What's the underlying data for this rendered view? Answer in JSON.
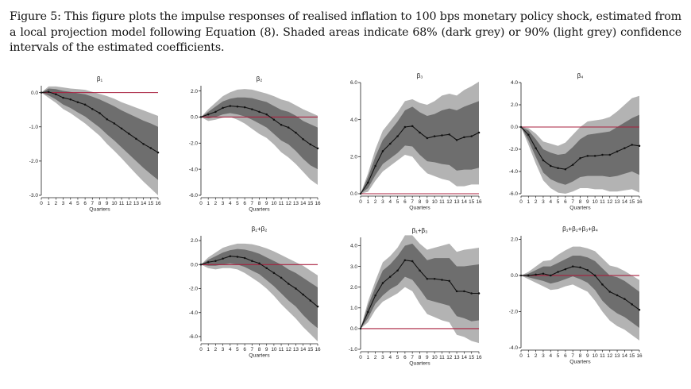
{
  "figure": {
    "caption": "Figure 5: This figure plots the impulse responses of realised inflation to 100 bps monetary policy shock, estimated from a local projection model following Equation (8). Shaded areas indicate 68% (dark grey) or 90% (light grey) confidence intervals of the estimated coefficients."
  },
  "colors": {
    "band90": "#b3b3b3",
    "band68": "#6e6e6e",
    "line": "#111111",
    "zero_line": "#a8203f"
  },
  "chart_data": [
    {
      "type": "line",
      "title": "β₁",
      "xlabel": "Quarters",
      "ylabel": "",
      "x": [
        0,
        1,
        2,
        3,
        4,
        5,
        6,
        7,
        8,
        9,
        10,
        11,
        12,
        13,
        14,
        15,
        16
      ],
      "ylim": [
        -3.0,
        0.2
      ],
      "yticks": [
        0.0,
        -1.0,
        -2.0,
        -3.0
      ],
      "ytick_labels": [
        "0.0",
        "-1.0",
        "-2.0",
        "-3.0"
      ],
      "series": [
        {
          "name": "point estimate",
          "values": [
            0,
            0.02,
            -0.05,
            -0.15,
            -0.2,
            -0.28,
            -0.35,
            -0.48,
            -0.6,
            -0.78,
            -0.9,
            -1.05,
            -1.2,
            -1.35,
            -1.5,
            -1.62,
            -1.75
          ]
        },
        {
          "name": "68% lower",
          "values": [
            0,
            -0.08,
            -0.2,
            -0.35,
            -0.45,
            -0.58,
            -0.7,
            -0.86,
            -1.02,
            -1.22,
            -1.4,
            -1.6,
            -1.8,
            -2.0,
            -2.2,
            -2.38,
            -2.55
          ]
        },
        {
          "name": "68% upper",
          "values": [
            0,
            0.12,
            0.1,
            0.05,
            0.02,
            -0.02,
            -0.05,
            -0.12,
            -0.2,
            -0.3,
            -0.4,
            -0.52,
            -0.62,
            -0.72,
            -0.82,
            -0.9,
            -1.0
          ]
        },
        {
          "name": "90% lower",
          "values": [
            0,
            -0.15,
            -0.3,
            -0.48,
            -0.6,
            -0.75,
            -0.9,
            -1.08,
            -1.26,
            -1.5,
            -1.7,
            -1.92,
            -2.15,
            -2.38,
            -2.6,
            -2.8,
            -3.0
          ]
        },
        {
          "name": "90% upper",
          "values": [
            0,
            0.18,
            0.18,
            0.15,
            0.12,
            0.1,
            0.08,
            0.02,
            -0.04,
            -0.1,
            -0.18,
            -0.28,
            -0.36,
            -0.44,
            -0.52,
            -0.6,
            -0.68
          ]
        }
      ]
    },
    {
      "type": "line",
      "title": "β₂",
      "xlabel": "Quarters",
      "ylabel": "",
      "x": [
        0,
        1,
        2,
        3,
        4,
        5,
        6,
        7,
        8,
        9,
        10,
        11,
        12,
        13,
        14,
        15,
        16
      ],
      "ylim": [
        -6.0,
        2.4
      ],
      "yticks": [
        2.0,
        0.0,
        -2.0,
        -4.0,
        -6.0
      ],
      "ytick_labels": [
        "2.0",
        "0.0",
        "-2.0",
        "-4.0",
        "-6.0"
      ],
      "series": [
        {
          "name": "point estimate",
          "values": [
            0,
            0.2,
            0.4,
            0.7,
            0.85,
            0.8,
            0.75,
            0.6,
            0.4,
            0.2,
            -0.2,
            -0.6,
            -0.8,
            -1.2,
            -1.7,
            -2.1,
            -2.4
          ]
        },
        {
          "name": "68% lower",
          "values": [
            0,
            -0.1,
            0,
            0.2,
            0.3,
            0.2,
            0.05,
            -0.2,
            -0.5,
            -0.8,
            -1.3,
            -1.8,
            -2.1,
            -2.6,
            -3.2,
            -3.7,
            -4.0
          ]
        },
        {
          "name": "68% upper",
          "values": [
            0,
            0.4,
            0.8,
            1.2,
            1.4,
            1.5,
            1.5,
            1.45,
            1.3,
            1.15,
            0.85,
            0.55,
            0.4,
            0.1,
            -0.3,
            -0.55,
            -0.8
          ]
        },
        {
          "name": "90% lower",
          "values": [
            0,
            -0.3,
            -0.2,
            -0.05,
            0,
            -0.2,
            -0.5,
            -0.9,
            -1.3,
            -1.6,
            -2.1,
            -2.7,
            -3.1,
            -3.6,
            -4.2,
            -4.8,
            -5.2
          ]
        },
        {
          "name": "90% upper",
          "values": [
            0,
            0.6,
            1.1,
            1.6,
            1.9,
            2.1,
            2.15,
            2.1,
            1.95,
            1.8,
            1.6,
            1.35,
            1.2,
            0.9,
            0.6,
            0.35,
            0.1
          ]
        }
      ]
    },
    {
      "type": "line",
      "title": "β₃",
      "xlabel": "Quarters",
      "ylabel": "",
      "x": [
        0,
        1,
        2,
        3,
        4,
        5,
        6,
        7,
        8,
        9,
        10,
        11,
        12,
        13,
        14,
        15,
        16
      ],
      "ylim": [
        0.0,
        6.0
      ],
      "yticks": [
        6.0,
        4.0,
        2.0,
        0.0
      ],
      "ytick_labels": [
        "6.0",
        "4.0",
        "2.0",
        "0.0"
      ],
      "series": [
        {
          "name": "point estimate",
          "values": [
            0,
            0.6,
            1.5,
            2.3,
            2.7,
            3.1,
            3.6,
            3.65,
            3.3,
            3,
            3.1,
            3.15,
            3.2,
            2.9,
            3.05,
            3.1,
            3.3
          ]
        },
        {
          "name": "68% lower",
          "values": [
            0,
            0.3,
            1.0,
            1.6,
            1.9,
            2.2,
            2.6,
            2.55,
            2.1,
            1.75,
            1.7,
            1.6,
            1.55,
            1.25,
            1.3,
            1.3,
            1.4
          ]
        },
        {
          "name": "68% upper",
          "values": [
            0,
            0.9,
            2.0,
            2.9,
            3.4,
            3.9,
            4.5,
            4.7,
            4.4,
            4.2,
            4.3,
            4.5,
            4.6,
            4.5,
            4.7,
            4.85,
            5.0
          ]
        },
        {
          "name": "90% lower",
          "values": [
            0,
            0.1,
            0.7,
            1.2,
            1.5,
            1.8,
            2.1,
            2.0,
            1.5,
            1.1,
            0.95,
            0.8,
            0.7,
            0.4,
            0.4,
            0.5,
            0.5
          ]
        },
        {
          "name": "90% upper",
          "values": [
            0,
            1.1,
            2.4,
            3.4,
            3.9,
            4.4,
            5.0,
            5.1,
            4.9,
            4.8,
            5.0,
            5.3,
            5.4,
            5.3,
            5.6,
            5.8,
            6.05
          ]
        }
      ]
    },
    {
      "type": "line",
      "title": "β₄",
      "xlabel": "Quarters",
      "ylabel": "",
      "x": [
        0,
        1,
        2,
        3,
        4,
        5,
        6,
        7,
        8,
        9,
        10,
        11,
        12,
        13,
        14,
        15,
        16
      ],
      "ylim": [
        -6.0,
        4.0
      ],
      "yticks": [
        4.0,
        2.0,
        0.0,
        -2.0,
        -4.0,
        -6.0
      ],
      "ytick_labels": [
        "4.0",
        "2.0",
        "0.0",
        "-2.0",
        "-4.0",
        "-6.0"
      ],
      "series": [
        {
          "name": "point estimate",
          "values": [
            0,
            -0.7,
            -1.9,
            -3.0,
            -3.5,
            -3.7,
            -3.8,
            -3.4,
            -2.8,
            -2.6,
            -2.6,
            -2.5,
            -2.5,
            -2.2,
            -1.9,
            -1.6,
            -1.7
          ]
        },
        {
          "name": "68% lower",
          "values": [
            0,
            -1.2,
            -2.7,
            -4.1,
            -4.7,
            -5.0,
            -5.2,
            -4.9,
            -4.5,
            -4.4,
            -4.4,
            -4.4,
            -4.5,
            -4.4,
            -4.2,
            -4.0,
            -4.3
          ]
        },
        {
          "name": "68% upper",
          "values": [
            0,
            -0.3,
            -1.1,
            -2.0,
            -2.3,
            -2.5,
            -2.4,
            -1.8,
            -1.1,
            -0.7,
            -0.6,
            -0.5,
            -0.4,
            0.0,
            0.4,
            0.8,
            1.1
          ]
        },
        {
          "name": "90% lower",
          "values": [
            0,
            -1.6,
            -3.3,
            -4.8,
            -5.5,
            -5.9,
            -6.0,
            -5.8,
            -5.5,
            -5.5,
            -5.6,
            -5.6,
            -5.8,
            -5.8,
            -5.7,
            -5.6,
            -5.9
          ]
        },
        {
          "name": "90% upper",
          "values": [
            0,
            -0.1,
            -0.6,
            -1.3,
            -1.5,
            -1.7,
            -1.4,
            -0.7,
            0.0,
            0.5,
            0.6,
            0.7,
            0.9,
            1.4,
            2.0,
            2.6,
            2.8
          ]
        }
      ]
    },
    {
      "type": "line",
      "title": "β₁+β₂",
      "xlabel": "Quarters",
      "ylabel": "",
      "x": [
        0,
        1,
        2,
        3,
        4,
        5,
        6,
        7,
        8,
        9,
        10,
        11,
        12,
        13,
        14,
        15,
        16
      ],
      "ylim": [
        -6.4,
        2.4
      ],
      "yticks": [
        2.0,
        0.0,
        -2.0,
        -4.0,
        -6.0
      ],
      "ytick_labels": [
        "2.0",
        "0.0",
        "-2.0",
        "-4.0",
        "-6.0"
      ],
      "series": [
        {
          "name": "point estimate",
          "values": [
            0,
            0.2,
            0.3,
            0.5,
            0.7,
            0.65,
            0.55,
            0.3,
            0.1,
            -0.3,
            -0.7,
            -1.1,
            -1.6,
            -2.0,
            -2.5,
            -3.0,
            -3.5
          ]
        },
        {
          "name": "68% lower",
          "values": [
            0,
            -0.1,
            -0.1,
            0,
            0.1,
            0,
            -0.2,
            -0.5,
            -0.8,
            -1.3,
            -1.8,
            -2.4,
            -3.0,
            -3.5,
            -4.2,
            -4.8,
            -5.3
          ]
        },
        {
          "name": "68% upper",
          "values": [
            0,
            0.4,
            0.7,
            1.0,
            1.2,
            1.3,
            1.25,
            1.1,
            0.9,
            0.6,
            0.3,
            0,
            -0.4,
            -0.7,
            -1.1,
            -1.5,
            -1.9
          ]
        },
        {
          "name": "90% lower",
          "values": [
            0,
            -0.3,
            -0.4,
            -0.3,
            -0.3,
            -0.4,
            -0.7,
            -1.1,
            -1.5,
            -2.0,
            -2.6,
            -3.3,
            -3.9,
            -4.5,
            -5.2,
            -5.8,
            -6.4
          ]
        },
        {
          "name": "90% upper",
          "values": [
            0,
            0.6,
            1.0,
            1.4,
            1.6,
            1.75,
            1.75,
            1.7,
            1.55,
            1.35,
            1.1,
            0.8,
            0.5,
            0.2,
            -0.1,
            -0.5,
            -0.9
          ]
        }
      ]
    },
    {
      "type": "line",
      "title": "β₁+β₃",
      "xlabel": "Quarters",
      "ylabel": "",
      "x": [
        0,
        1,
        2,
        3,
        4,
        5,
        6,
        7,
        8,
        9,
        10,
        11,
        12,
        13,
        14,
        15,
        16
      ],
      "ylim": [
        -1.0,
        4.4
      ],
      "yticks": [
        4.0,
        3.0,
        2.0,
        1.0,
        0.0,
        -1.0
      ],
      "ytick_labels": [
        "4.0",
        "3.0",
        "2.0",
        "1.0",
        "0.0",
        "-1.0"
      ],
      "series": [
        {
          "name": "point estimate",
          "values": [
            0,
            0.8,
            1.6,
            2.2,
            2.5,
            2.8,
            3.3,
            3.25,
            2.8,
            2.4,
            2.4,
            2.35,
            2.3,
            1.8,
            1.8,
            1.7,
            1.7
          ]
        },
        {
          "name": "68% lower",
          "values": [
            0,
            0.5,
            1.2,
            1.6,
            1.9,
            2.1,
            2.5,
            2.35,
            1.9,
            1.4,
            1.3,
            1.2,
            1.1,
            0.6,
            0.5,
            0.35,
            0.4
          ]
        },
        {
          "name": "68% upper",
          "values": [
            0,
            1.1,
            2.0,
            2.8,
            3.1,
            3.5,
            4.0,
            4.1,
            3.7,
            3.3,
            3.4,
            3.4,
            3.4,
            3.0,
            3.0,
            3.05,
            3.1
          ]
        },
        {
          "name": "90% lower",
          "values": [
            0,
            0.3,
            0.9,
            1.3,
            1.5,
            1.7,
            2.0,
            1.8,
            1.2,
            0.7,
            0.55,
            0.4,
            0.3,
            -0.3,
            -0.4,
            -0.6,
            -0.7
          ]
        },
        {
          "name": "90% upper",
          "values": [
            0,
            1.3,
            2.3,
            3.2,
            3.5,
            3.9,
            4.5,
            4.5,
            4.1,
            3.8,
            3.9,
            4.0,
            4.1,
            3.7,
            3.8,
            3.85,
            3.9
          ]
        }
      ]
    },
    {
      "type": "line",
      "title": "β₁+β₂+β₃+β₄",
      "xlabel": "Quarters",
      "ylabel": "",
      "x": [
        0,
        1,
        2,
        3,
        4,
        5,
        6,
        7,
        8,
        9,
        10,
        11,
        12,
        13,
        14,
        15,
        16
      ],
      "ylim": [
        -4.0,
        2.2
      ],
      "yticks": [
        2.0,
        0.0,
        -2.0,
        -4.0
      ],
      "ytick_labels": [
        "2.0",
        "0.0",
        "-2.0",
        "-4.0"
      ],
      "series": [
        {
          "name": "point estimate",
          "values": [
            0,
            0,
            0.05,
            0.1,
            0,
            0.2,
            0.35,
            0.5,
            0.45,
            0.3,
            0,
            -0.5,
            -0.9,
            -1.1,
            -1.3,
            -1.6,
            -1.9
          ]
        },
        {
          "name": "68% lower",
          "values": [
            0,
            -0.1,
            -0.2,
            -0.3,
            -0.45,
            -0.35,
            -0.2,
            -0.05,
            -0.2,
            -0.4,
            -0.8,
            -1.4,
            -1.8,
            -2.1,
            -2.3,
            -2.6,
            -2.9
          ]
        },
        {
          "name": "68% upper",
          "values": [
            0,
            0.1,
            0.3,
            0.5,
            0.5,
            0.7,
            0.9,
            1.1,
            1.1,
            1.0,
            0.8,
            0.4,
            0.0,
            -0.1,
            -0.3,
            -0.6,
            -0.9
          ]
        },
        {
          "name": "90% lower",
          "values": [
            0,
            -0.2,
            -0.4,
            -0.6,
            -0.8,
            -0.75,
            -0.6,
            -0.5,
            -0.7,
            -0.9,
            -1.4,
            -2.0,
            -2.5,
            -2.8,
            -3.0,
            -3.3,
            -3.6
          ]
        },
        {
          "name": "90% upper",
          "values": [
            0,
            0.2,
            0.5,
            0.8,
            0.85,
            1.15,
            1.4,
            1.6,
            1.6,
            1.5,
            1.35,
            0.95,
            0.55,
            0.45,
            0.25,
            0.0,
            -0.25
          ]
        }
      ]
    }
  ]
}
